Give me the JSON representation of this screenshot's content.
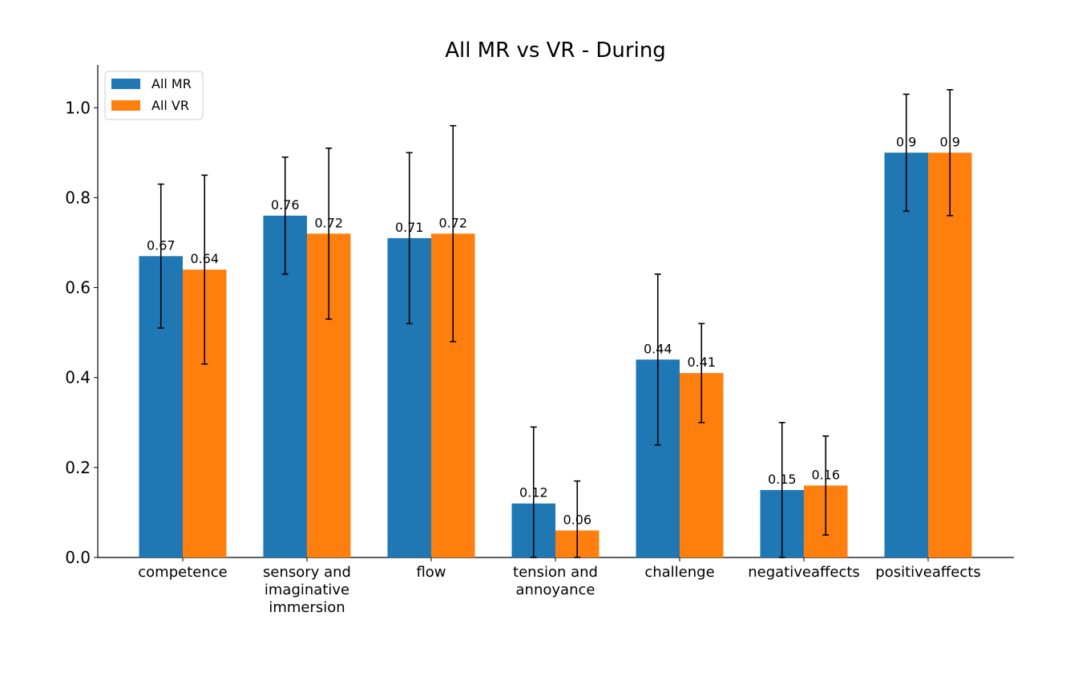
{
  "chart_data": {
    "type": "bar",
    "title": "All MR vs VR - During",
    "xlabel": "",
    "ylabel": "",
    "ylim": [
      0,
      1.095
    ],
    "yticks": [
      "0.0",
      "0.2",
      "0.4",
      "0.6",
      "0.8",
      "1.0"
    ],
    "ytick_values": [
      0,
      0.2,
      0.4,
      0.6,
      0.8,
      1.0
    ],
    "categories": [
      [
        "competence"
      ],
      [
        "sensory and",
        "imaginative",
        "immersion"
      ],
      [
        "flow"
      ],
      [
        "tension and",
        "annoyance"
      ],
      [
        "challenge"
      ],
      [
        "negativeaffects"
      ],
      [
        "positiveaffects"
      ]
    ],
    "series": [
      {
        "name": "All MR",
        "color": "#1f77b4",
        "values": [
          0.67,
          0.76,
          0.71,
          0.12,
          0.44,
          0.15,
          0.9
        ],
        "labels": [
          "0.67",
          "0.76",
          "0.71",
          "0.12",
          "0.44",
          "0.15",
          "0.9"
        ],
        "err_low": [
          0.51,
          0.63,
          0.52,
          0.0,
          0.25,
          0.0,
          0.77
        ],
        "err_high": [
          0.83,
          0.89,
          0.9,
          0.29,
          0.63,
          0.3,
          1.03
        ]
      },
      {
        "name": "All VR",
        "color": "#ff7f0e",
        "values": [
          0.64,
          0.72,
          0.72,
          0.06,
          0.41,
          0.16,
          0.9
        ],
        "labels": [
          "0.64",
          "0.72",
          "0.72",
          "0.06",
          "0.41",
          "0.16",
          "0.9"
        ],
        "err_low": [
          0.43,
          0.53,
          0.48,
          0.0,
          0.3,
          0.05,
          0.76
        ],
        "err_high": [
          0.85,
          0.91,
          0.96,
          0.17,
          0.52,
          0.27,
          1.04
        ]
      }
    ],
    "legend_position": "top-left",
    "grid": false
  }
}
